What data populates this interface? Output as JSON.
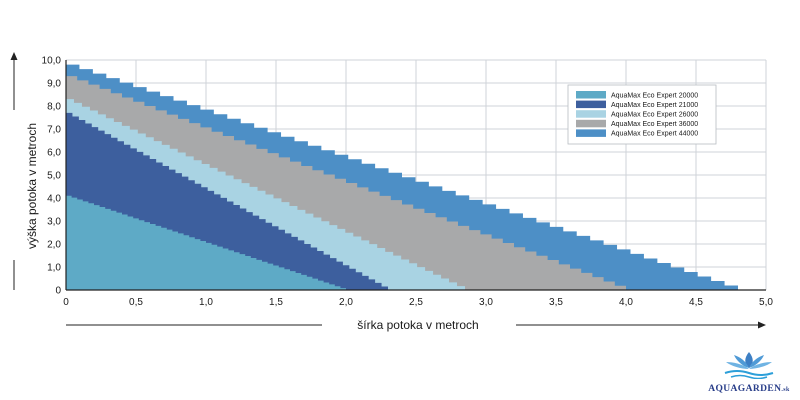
{
  "chart_data": {
    "type": "area",
    "xlabel": "šírka potoka v metroch",
    "ylabel": "výška potoka v metroch",
    "xlim": [
      0,
      5
    ],
    "ylim": [
      0,
      10
    ],
    "x_ticks": [
      "0",
      "0,5",
      "1,0",
      "1,5",
      "2,0",
      "2,5",
      "3,0",
      "3,5",
      "4,0",
      "4,5",
      "5,0"
    ],
    "y_ticks": [
      "0",
      "1,0",
      "2,0",
      "3,0",
      "4,0",
      "5,0",
      "6,0",
      "7,0",
      "8,0",
      "9,0",
      "10,0"
    ],
    "grid": true,
    "legend_position": "top-right",
    "series": [
      {
        "name": "AquaMax Eco Expert 44000",
        "color": "#4d8fc6",
        "points": [
          [
            0,
            9.8
          ],
          [
            4.8,
            0
          ]
        ]
      },
      {
        "name": "AquaMax Eco Expert 36000",
        "color": "#a8a9aa",
        "points": [
          [
            0,
            9.3
          ],
          [
            4.0,
            0
          ]
        ]
      },
      {
        "name": "AquaMax Eco Expert 26000",
        "color": "#a9d3e3",
        "points": [
          [
            0,
            8.3
          ],
          [
            2.85,
            0
          ]
        ]
      },
      {
        "name": "AquaMax Eco Expert 21000",
        "color": "#3d5f9e",
        "points": [
          [
            0,
            7.7
          ],
          [
            2.3,
            0
          ]
        ]
      },
      {
        "name": "AquaMax Eco Expert 20000",
        "color": "#5eaac6",
        "points": [
          [
            0,
            4.1
          ],
          [
            2.0,
            0
          ]
        ]
      }
    ],
    "legend": [
      {
        "label": "AquaMax Eco Expert 20000",
        "color": "#5eaac6"
      },
      {
        "label": "AquaMax Eco Expert 21000",
        "color": "#3d5f9e"
      },
      {
        "label": "AquaMax Eco Expert 26000",
        "color": "#a9d3e3"
      },
      {
        "label": "AquaMax Eco Expert 36000",
        "color": "#a8a9aa"
      },
      {
        "label": "AquaMax Eco Expert 44000",
        "color": "#4d8fc6"
      }
    ]
  },
  "logo": {
    "name": "AQUAGARDEN",
    "suffix": ".sk",
    "colors": {
      "petals": "#3d7fc4",
      "water": "#2d9fd9",
      "text": "#2a3f8a"
    }
  },
  "colors": {
    "grid": "#cfd3d8",
    "axis": "#222222",
    "arrow": "#222222"
  }
}
